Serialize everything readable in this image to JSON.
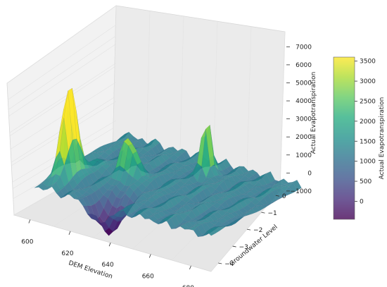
{
  "chart_data": {
    "type": "surface",
    "title": "",
    "xlabel": "DEM Elevation",
    "ylabel": "Groundwater Level",
    "zlabel": "Actual Evapotranspiration",
    "xlim": [
      592,
      690
    ],
    "ylim": [
      -4.5,
      0.3
    ],
    "zlim": [
      -1200,
      7600
    ],
    "x_ticks": [
      "600",
      "620",
      "640",
      "660",
      "680"
    ],
    "y_ticks": [
      "0",
      "−1",
      "−2",
      "−3",
      "−4"
    ],
    "z_ticks": [
      "−1000",
      "0",
      "1000",
      "2000",
      "3000",
      "4000",
      "5000",
      "6000",
      "7000"
    ],
    "colormap": "viridis",
    "grid": true,
    "colorbar": {
      "label": "Actual Evapotranspiration",
      "ticks": [
        "0",
        "500",
        "1000",
        "1500",
        "2000",
        "2500",
        "3000",
        "3500"
      ],
      "range": [
        -450,
        3600
      ]
    },
    "surface_baseline": 1200,
    "features": [
      {
        "name": "main-peak",
        "x": 606,
        "y": -3.2,
        "z": 6200
      },
      {
        "name": "secondary-peak",
        "x": 650,
        "y": -0.8,
        "z": 4500
      },
      {
        "name": "spike-ridge",
        "x": 622,
        "y": -2.2,
        "z": 4200
      },
      {
        "name": "depression",
        "x": 632,
        "y": -3.8,
        "z": -700
      }
    ]
  }
}
